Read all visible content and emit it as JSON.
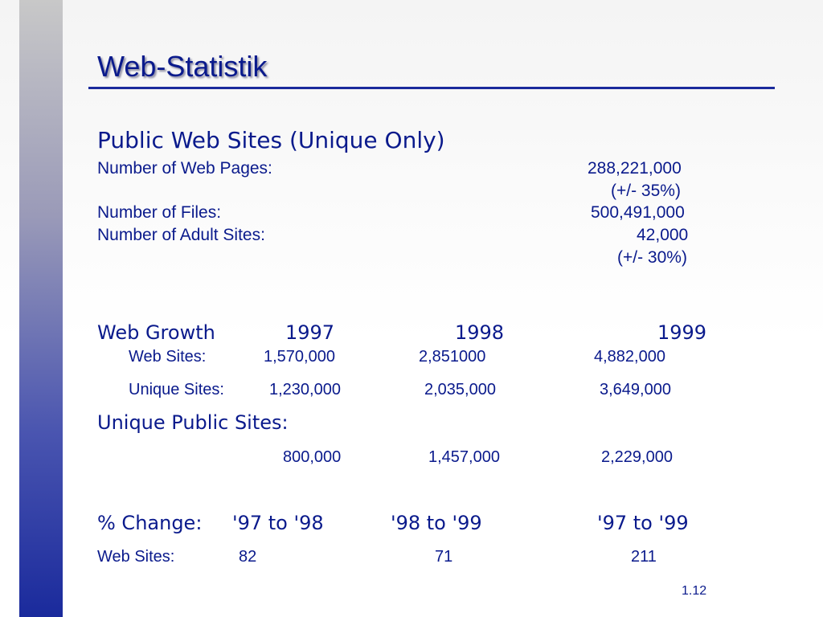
{
  "title": "Web-Statistik",
  "public_sites": {
    "heading": "Public Web Sites (Unique Only)",
    "pages_label": "Number of Web Pages:",
    "pages_value": "288,221,000",
    "pages_margin": "(+/- 35%)",
    "files_label": "Number of Files:",
    "files_value": "500,491,000",
    "adult_label": "Number of Adult Sites:",
    "adult_value": "42,000",
    "adult_margin": "(+/- 30%)"
  },
  "growth": {
    "label": "Web Growth",
    "years": [
      "1997",
      "1998",
      "1999"
    ],
    "web_sites": {
      "label": "Web Sites:",
      "values": [
        "1,570,000",
        "2,851000",
        "4,882,000"
      ]
    },
    "unique_sites": {
      "label": "Unique Sites:",
      "values": [
        "1,230,000",
        "2,035,000",
        "3,649,000"
      ]
    },
    "unique_public": {
      "label": "Unique Public Sites:",
      "values": [
        "800,000",
        "1,457,000",
        "2,229,000"
      ]
    }
  },
  "change": {
    "label": "% Change:",
    "periods": [
      "'97 to '98",
      "'98 to '99",
      "'97 to '99"
    ],
    "web_sites_label": "Web Sites:",
    "web_sites_values": [
      "82",
      "71",
      "211"
    ]
  },
  "page_number": "1.12"
}
